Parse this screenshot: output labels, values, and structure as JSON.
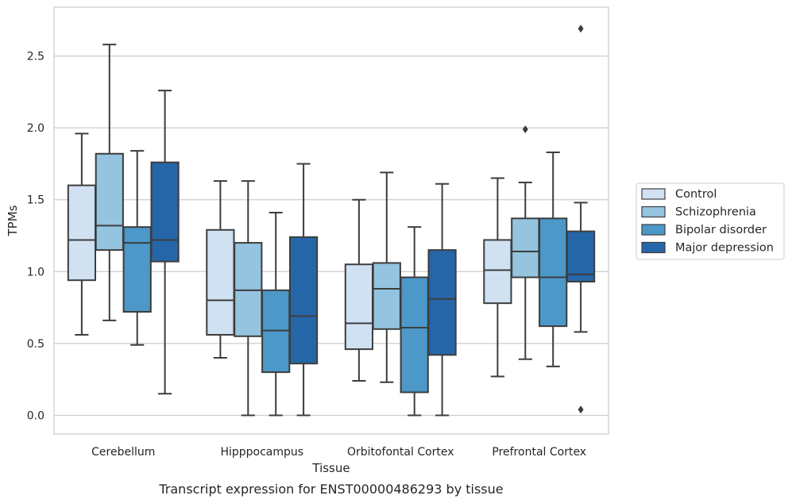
{
  "chart_data": {
    "type": "box",
    "ylabel": "TPMs",
    "xlabel": "Tissue",
    "caption": "Transcript expression for ENST00000486293 by tissue",
    "ylim": [
      -0.13,
      2.84
    ],
    "yticks": [
      0.0,
      0.5,
      1.0,
      1.5,
      2.0,
      2.5
    ],
    "ytick_labels": [
      "0.0",
      "0.5",
      "1.0",
      "1.5",
      "2.0",
      "2.5"
    ],
    "grid": true,
    "legend_position": "right-center",
    "categories": [
      "Cerebellum",
      "Hipppocampus",
      "Orbitofontal Cortex",
      "Prefrontal Cortex"
    ],
    "series": [
      {
        "name": "Control",
        "color": "#d0e1f2",
        "boxes": [
          {
            "whislo": 0.56,
            "q1": 0.94,
            "med": 1.22,
            "q3": 1.6,
            "whishi": 1.96,
            "fliers": []
          },
          {
            "whislo": 0.4,
            "q1": 0.56,
            "med": 0.8,
            "q3": 1.29,
            "whishi": 1.63,
            "fliers": []
          },
          {
            "whislo": 0.24,
            "q1": 0.46,
            "med": 0.64,
            "q3": 1.05,
            "whishi": 1.5,
            "fliers": []
          },
          {
            "whislo": 0.27,
            "q1": 0.78,
            "med": 1.01,
            "q3": 1.22,
            "whishi": 1.65,
            "fliers": []
          }
        ]
      },
      {
        "name": "Schizophrenia",
        "color": "#94c4df",
        "boxes": [
          {
            "whislo": 0.66,
            "q1": 1.15,
            "med": 1.32,
            "q3": 1.82,
            "whishi": 2.58,
            "fliers": []
          },
          {
            "whislo": 0.0,
            "q1": 0.55,
            "med": 0.87,
            "q3": 1.2,
            "whishi": 1.63,
            "fliers": []
          },
          {
            "whislo": 0.23,
            "q1": 0.6,
            "med": 0.88,
            "q3": 1.06,
            "whishi": 1.69,
            "fliers": []
          },
          {
            "whislo": 0.39,
            "q1": 0.96,
            "med": 1.14,
            "q3": 1.37,
            "whishi": 1.62,
            "fliers": [
              1.99
            ]
          }
        ]
      },
      {
        "name": "Bipolar disorder",
        "color": "#4b98c9",
        "boxes": [
          {
            "whislo": 0.49,
            "q1": 0.72,
            "med": 1.2,
            "q3": 1.31,
            "whishi": 1.84,
            "fliers": []
          },
          {
            "whislo": 0.0,
            "q1": 0.3,
            "med": 0.59,
            "q3": 0.87,
            "whishi": 1.41,
            "fliers": []
          },
          {
            "whislo": 0.0,
            "q1": 0.16,
            "med": 0.61,
            "q3": 0.96,
            "whishi": 1.31,
            "fliers": []
          },
          {
            "whislo": 0.34,
            "q1": 0.62,
            "med": 0.96,
            "q3": 1.37,
            "whishi": 1.83,
            "fliers": []
          }
        ]
      },
      {
        "name": "Major depression",
        "color": "#2566a8",
        "boxes": [
          {
            "whislo": 0.15,
            "q1": 1.07,
            "med": 1.22,
            "q3": 1.76,
            "whishi": 2.26,
            "fliers": []
          },
          {
            "whislo": 0.0,
            "q1": 0.36,
            "med": 0.69,
            "q3": 1.24,
            "whishi": 1.75,
            "fliers": []
          },
          {
            "whislo": 0.0,
            "q1": 0.42,
            "med": 0.81,
            "q3": 1.15,
            "whishi": 1.61,
            "fliers": []
          },
          {
            "whislo": 0.58,
            "q1": 0.93,
            "med": 0.98,
            "q3": 1.28,
            "whishi": 1.48,
            "fliers": [
              2.69,
              0.04
            ]
          }
        ]
      }
    ]
  }
}
